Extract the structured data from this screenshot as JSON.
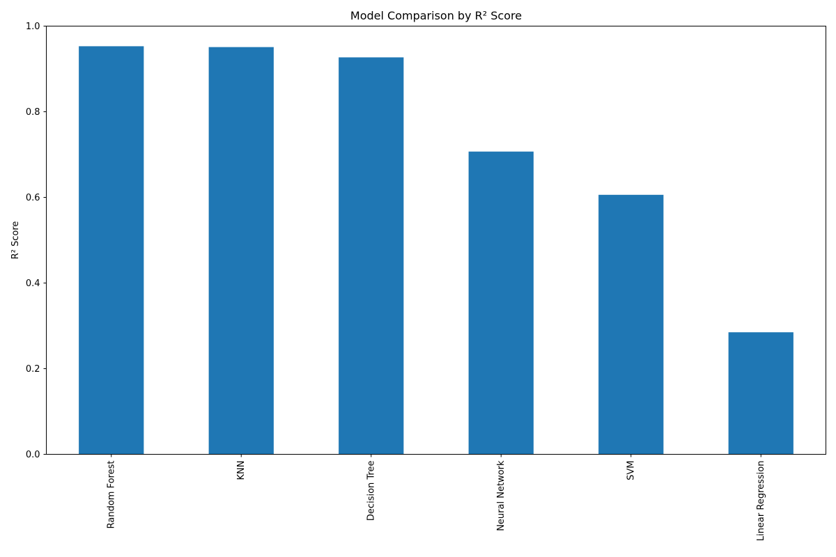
{
  "chart_data": {
    "type": "bar",
    "title": "Model Comparison by R² Score",
    "xlabel": "",
    "ylabel": "R² Score",
    "categories": [
      "Random Forest",
      "KNN",
      "Decision Tree",
      "Neural Network",
      "SVM",
      "Linear Regression"
    ],
    "values": [
      0.953,
      0.951,
      0.927,
      0.707,
      0.606,
      0.285
    ],
    "ylim": [
      0,
      1.0
    ],
    "yticks": [
      0.0,
      0.2,
      0.4,
      0.6,
      0.8,
      1.0
    ],
    "ytick_labels": [
      "0.0",
      "0.2",
      "0.4",
      "0.6",
      "0.8",
      "1.0"
    ],
    "bar_color": "#1f77b4",
    "grid": false,
    "legend": false
  }
}
